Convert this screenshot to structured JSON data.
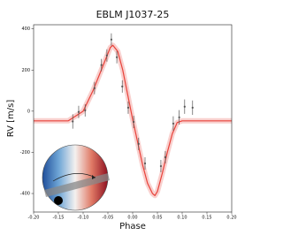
{
  "chart_data": {
    "type": "scatter",
    "title": "EBLM J1037-25",
    "xlabel": "Phase",
    "ylabel": "RV [m/s]",
    "xlim": [
      -0.2,
      0.2
    ],
    "ylim": [
      -490,
      420
    ],
    "xticks": [
      {
        "value": -0.2,
        "label": "-0.20"
      },
      {
        "value": -0.15,
        "label": "-0.15"
      },
      {
        "value": -0.1,
        "label": "-0.10"
      },
      {
        "value": -0.05,
        "label": "-0.05"
      },
      {
        "value": 0,
        "label": "0.00"
      },
      {
        "value": 0.05,
        "label": "0.05"
      },
      {
        "value": 0.1,
        "label": "0.10"
      },
      {
        "value": 0.15,
        "label": "0.15"
      },
      {
        "value": 0.2,
        "label": "0.20"
      }
    ],
    "yticks": [
      -400,
      -200,
      0,
      200,
      400
    ],
    "series": [
      {
        "color": "#555555",
        "x": [
          -0.121,
          -0.109,
          -0.096,
          -0.077,
          -0.063,
          -0.052,
          -0.043,
          -0.032,
          -0.021,
          -0.009,
          0.002,
          0.012,
          0.025,
          0.057,
          0.066,
          0.082,
          0.094,
          0.105,
          0.121
        ],
        "values": [
          -50,
          -4,
          4,
          112,
          224,
          271,
          348,
          262,
          120,
          17,
          -52,
          -159,
          -254,
          -267,
          -224,
          -60,
          -30,
          22,
          17
        ],
        "errors": [
          35,
          30,
          30,
          30,
          30,
          30,
          30,
          30,
          30,
          30,
          30,
          30,
          30,
          30,
          30,
          35,
          35,
          35,
          35
        ]
      }
    ],
    "model": {
      "color": "#e8423a",
      "x": [
        -0.2,
        -0.13,
        -0.1,
        -0.08,
        -0.06,
        -0.045,
        -0.04,
        -0.03,
        -0.02,
        -0.01,
        0,
        0.01,
        0.02,
        0.03,
        0.04,
        0.045,
        0.05,
        0.06,
        0.07,
        0.08,
        0.09,
        0.1,
        0.2
      ],
      "values": [
        -47,
        -47,
        0,
        100,
        220,
        310,
        320,
        290,
        200,
        80,
        -40,
        -150,
        -260,
        -350,
        -400,
        -410,
        -390,
        -300,
        -200,
        -110,
        -55,
        -47,
        -47
      ]
    }
  }
}
